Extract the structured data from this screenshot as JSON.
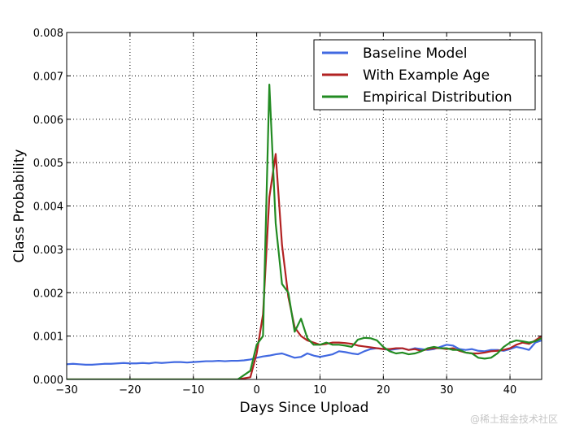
{
  "chart_data": {
    "type": "line",
    "title": "",
    "xlabel": "Days Since Upload",
    "ylabel": "Class Probability",
    "xlim": [
      -30,
      45
    ],
    "ylim": [
      0,
      0.008
    ],
    "xticks": [
      -30,
      -20,
      -10,
      0,
      10,
      20,
      30,
      40
    ],
    "yticks": [
      0.0,
      0.001,
      0.002,
      0.003,
      0.004,
      0.005,
      0.006,
      0.007,
      0.008
    ],
    "xtick_labels": [
      "−30",
      "−20",
      "−10",
      "0",
      "10",
      "20",
      "30",
      "40"
    ],
    "ytick_labels": [
      "0.000",
      "0.001",
      "0.002",
      "0.003",
      "0.004",
      "0.005",
      "0.006",
      "0.007",
      "0.008"
    ],
    "grid": true,
    "grid_style": "dotted",
    "legend_position": "top-right",
    "series": [
      {
        "name": "Baseline Model",
        "color": "#4169e1",
        "x": [
          -30,
          -29,
          -28,
          -27,
          -26,
          -25,
          -24,
          -23,
          -22,
          -21,
          -20,
          -19,
          -18,
          -17,
          -16,
          -15,
          -14,
          -13,
          -12,
          -11,
          -10,
          -9,
          -8,
          -7,
          -6,
          -5,
          -4,
          -3,
          -2,
          -1,
          0,
          1,
          2,
          3,
          4,
          5,
          6,
          7,
          8,
          9,
          10,
          11,
          12,
          13,
          14,
          15,
          16,
          17,
          18,
          19,
          20,
          21,
          22,
          23,
          24,
          25,
          26,
          27,
          28,
          29,
          30,
          31,
          32,
          33,
          34,
          35,
          36,
          37,
          38,
          39,
          40,
          41,
          42,
          43,
          44,
          45
        ],
        "y": [
          0.00035,
          0.00036,
          0.00035,
          0.00034,
          0.00034,
          0.00035,
          0.00036,
          0.00036,
          0.00037,
          0.00038,
          0.00037,
          0.00037,
          0.00038,
          0.00037,
          0.00039,
          0.00038,
          0.00039,
          0.0004,
          0.0004,
          0.00039,
          0.0004,
          0.00041,
          0.00042,
          0.00042,
          0.00043,
          0.00042,
          0.00043,
          0.00043,
          0.00044,
          0.00046,
          0.0005,
          0.00053,
          0.00055,
          0.00058,
          0.0006,
          0.00055,
          0.0005,
          0.00052,
          0.0006,
          0.00055,
          0.00052,
          0.00055,
          0.00058,
          0.00065,
          0.00063,
          0.0006,
          0.00058,
          0.00065,
          0.0007,
          0.00072,
          0.0007,
          0.00068,
          0.0007,
          0.00072,
          0.00068,
          0.00072,
          0.0007,
          0.00068,
          0.0007,
          0.00075,
          0.0008,
          0.00078,
          0.0007,
          0.00068,
          0.0007,
          0.00066,
          0.00065,
          0.00068,
          0.00068,
          0.00066,
          0.0007,
          0.00075,
          0.00072,
          0.00068,
          0.00085,
          0.0009
        ]
      },
      {
        "name": "With Example Age",
        "color": "#b22222",
        "x": [
          -30,
          -20,
          -10,
          -3,
          -1,
          0,
          1,
          2,
          3,
          4,
          5,
          6,
          7,
          8,
          9,
          10,
          11,
          12,
          13,
          14,
          15,
          16,
          17,
          18,
          19,
          20,
          21,
          22,
          23,
          24,
          25,
          26,
          27,
          28,
          29,
          30,
          31,
          32,
          33,
          34,
          35,
          36,
          37,
          38,
          39,
          40,
          41,
          42,
          43,
          44,
          45
        ],
        "y": [
          0.0,
          0.0,
          0.0,
          0.0,
          5e-05,
          0.0006,
          0.0015,
          0.0042,
          0.0052,
          0.0031,
          0.0019,
          0.0012,
          0.001,
          0.0009,
          0.00085,
          0.0008,
          0.00082,
          0.00085,
          0.00085,
          0.00084,
          0.00082,
          0.00078,
          0.00076,
          0.00074,
          0.00072,
          0.0007,
          0.0007,
          0.00072,
          0.00072,
          0.00068,
          0.0007,
          0.00066,
          0.0007,
          0.00072,
          0.00072,
          0.0007,
          0.00072,
          0.00066,
          0.00062,
          0.0006,
          0.0006,
          0.00062,
          0.00065,
          0.00066,
          0.00068,
          0.00072,
          0.0008,
          0.00085,
          0.00082,
          0.0009,
          0.001
        ]
      },
      {
        "name": "Empirical Distribution",
        "color": "#228b22",
        "x": [
          -30,
          -20,
          -10,
          -3,
          -1,
          0,
          1,
          2,
          3,
          4,
          5,
          6,
          7,
          8,
          9,
          10,
          11,
          12,
          13,
          14,
          15,
          16,
          17,
          18,
          19,
          20,
          21,
          22,
          23,
          24,
          25,
          26,
          27,
          28,
          29,
          30,
          31,
          32,
          33,
          34,
          35,
          36,
          37,
          38,
          39,
          40,
          41,
          42,
          43,
          44,
          45
        ],
        "y": [
          0.0,
          0.0,
          0.0,
          0.0,
          0.0002,
          0.0008,
          0.001,
          0.0068,
          0.0036,
          0.0022,
          0.002,
          0.0011,
          0.0014,
          0.00095,
          0.0008,
          0.0008,
          0.00085,
          0.0008,
          0.0008,
          0.00078,
          0.00075,
          0.00092,
          0.00096,
          0.00095,
          0.0009,
          0.00075,
          0.00065,
          0.0006,
          0.00062,
          0.00058,
          0.0006,
          0.00065,
          0.00072,
          0.00075,
          0.00072,
          0.00072,
          0.00068,
          0.00068,
          0.00062,
          0.0006,
          0.0005,
          0.00048,
          0.0005,
          0.0006,
          0.00075,
          0.00085,
          0.0009,
          0.00088,
          0.00085,
          0.00088,
          0.00095
        ]
      }
    ]
  },
  "watermark": "@稀土掘金技术社区"
}
